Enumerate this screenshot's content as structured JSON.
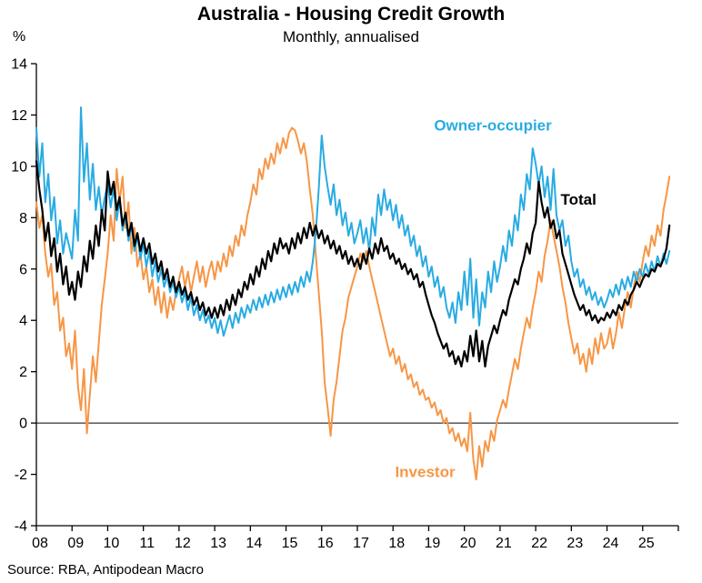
{
  "header": {
    "title": "Australia - Housing Credit Growth",
    "subtitle": "Monthly, annualised",
    "y_axis_unit": "%"
  },
  "footer": {
    "source": "Source: RBA, Antipodean Macro"
  },
  "chart_data": {
    "type": "line",
    "title": "Australia - Housing Credit Growth",
    "subtitle": "Monthly, annualised",
    "ylabel": "%",
    "xlim": [
      2008,
      2026
    ],
    "ylim": [
      -4,
      14
    ],
    "grid": false,
    "zero_line": true,
    "x_start_year": 2008,
    "x_step_months": 1,
    "y_ticks": [
      14,
      12,
      10,
      8,
      6,
      4,
      2,
      0,
      -2,
      -4
    ],
    "x_ticks": [
      {
        "year": 2008,
        "label": "08"
      },
      {
        "year": 2009,
        "label": "09"
      },
      {
        "year": 2010,
        "label": "10"
      },
      {
        "year": 2011,
        "label": "11"
      },
      {
        "year": 2012,
        "label": "12"
      },
      {
        "year": 2013,
        "label": "13"
      },
      {
        "year": 2014,
        "label": "14"
      },
      {
        "year": 2015,
        "label": "15"
      },
      {
        "year": 2016,
        "label": "16"
      },
      {
        "year": 2017,
        "label": "17"
      },
      {
        "year": 2018,
        "label": "18"
      },
      {
        "year": 2019,
        "label": "19"
      },
      {
        "year": 2020,
        "label": "20"
      },
      {
        "year": 2021,
        "label": "21"
      },
      {
        "year": 2022,
        "label": "22"
      },
      {
        "year": 2023,
        "label": "23"
      },
      {
        "year": 2024,
        "label": "24"
      },
      {
        "year": 2025,
        "label": "25"
      }
    ],
    "draw_order": [
      2,
      0,
      1
    ],
    "series": [
      {
        "name": "Owner-occupier",
        "color": "#29ABE2",
        "stroke_width": 2,
        "values": [
          11.5,
          9.6,
          10.9,
          8.6,
          9.7,
          7.9,
          8.8,
          7.0,
          7.9,
          6.6,
          7.4,
          6.9,
          6.4,
          8.3,
          7.1,
          12.3,
          9.4,
          10.9,
          8.7,
          10.1,
          8.3,
          9.2,
          8.1,
          8.8,
          9.3,
          8.4,
          9.2,
          7.9,
          8.7,
          7.5,
          8.1,
          7.1,
          7.7,
          6.7,
          7.3,
          6.4,
          7.0,
          6.1,
          6.7,
          5.7,
          6.3,
          5.5,
          6.0,
          5.3,
          5.7,
          5.1,
          5.5,
          4.9,
          5.3,
          4.7,
          5.1,
          4.4,
          4.9,
          4.2,
          4.6,
          4.0,
          4.4,
          3.9,
          4.2,
          3.7,
          4.1,
          3.5,
          4.0,
          3.4,
          3.8,
          4.2,
          3.7,
          4.3,
          3.9,
          4.5,
          4.1,
          4.6,
          4.3,
          4.8,
          4.4,
          4.9,
          4.5,
          5.0,
          4.6,
          5.1,
          4.7,
          5.2,
          4.8,
          5.3,
          4.9,
          5.4,
          5.0,
          5.5,
          5.1,
          5.7,
          5.3,
          5.9,
          5.5,
          6.3,
          7.4,
          9.1,
          11.2,
          10.0,
          9.2,
          8.5,
          9.3,
          8.1,
          8.7,
          7.7,
          8.2,
          7.3,
          7.8,
          7.0,
          7.4,
          7.9,
          7.0,
          7.6,
          6.7,
          8.0,
          7.3,
          8.9,
          8.1,
          9.1,
          8.3,
          8.7,
          7.9,
          8.5,
          7.6,
          8.1,
          7.3,
          7.7,
          6.9,
          7.3,
          6.5,
          6.9,
          6.1,
          6.5,
          5.7,
          6.1,
          5.3,
          5.7,
          4.9,
          5.3,
          4.5,
          4.1,
          4.7,
          3.9,
          5.1,
          4.4,
          5.9,
          4.6,
          6.4,
          4.1,
          5.6,
          3.8,
          5.1,
          4.5,
          5.9,
          5.1,
          6.3,
          5.5,
          6.1,
          6.9,
          6.3,
          7.5,
          6.9,
          8.1,
          7.5,
          8.9,
          8.3,
          9.7,
          9.1,
          10.7,
          10.1,
          9.3,
          10.0,
          8.8,
          9.6,
          8.3,
          9.9,
          8.1,
          7.5,
          7.9,
          6.9,
          7.3,
          6.3,
          5.7,
          6.0,
          5.3,
          5.6,
          5.0,
          5.3,
          4.8,
          5.1,
          4.6,
          4.9,
          4.5,
          4.8,
          5.2,
          4.9,
          5.4,
          5.0,
          5.6,
          5.2,
          5.7,
          5.3,
          5.9,
          5.5,
          6.0,
          5.7,
          6.2,
          5.8,
          6.3,
          5.9,
          6.5,
          6.1,
          6.6,
          6.2,
          6.7
        ]
      },
      {
        "name": "Total",
        "color": "#000000",
        "stroke_width": 2.2,
        "values": [
          10.2,
          9.1,
          8.3,
          7.1,
          7.8,
          6.5,
          7.2,
          5.9,
          6.6,
          5.4,
          6.1,
          5.0,
          5.5,
          4.8,
          5.9,
          5.3,
          6.5,
          5.9,
          7.1,
          6.4,
          7.7,
          6.9,
          8.3,
          7.5,
          9.8,
          8.9,
          9.4,
          8.3,
          8.8,
          7.7,
          8.2,
          7.3,
          7.8,
          6.9,
          7.4,
          6.7,
          7.2,
          6.6,
          7.0,
          6.2,
          6.6,
          5.9,
          6.3,
          5.6,
          6.0,
          5.3,
          5.7,
          5.1,
          5.5,
          5.0,
          5.3,
          4.8,
          5.1,
          4.6,
          4.9,
          4.4,
          4.7,
          4.2,
          4.5,
          4.1,
          4.5,
          4.1,
          4.6,
          4.2,
          4.8,
          4.4,
          5.0,
          4.6,
          5.2,
          4.9,
          5.5,
          5.2,
          5.8,
          5.4,
          6.1,
          5.7,
          6.4,
          6.0,
          6.7,
          6.3,
          7.0,
          6.6,
          7.2,
          6.8,
          7.0,
          6.6,
          7.2,
          6.8,
          7.4,
          7.0,
          7.6,
          7.2,
          7.8,
          7.3,
          7.7,
          7.2,
          7.5,
          7.0,
          7.3,
          6.8,
          7.1,
          6.6,
          6.9,
          6.4,
          6.7,
          6.2,
          6.5,
          6.1,
          6.4,
          6.0,
          6.6,
          6.2,
          6.8,
          6.4,
          7.0,
          6.6,
          7.2,
          6.7,
          6.9,
          6.4,
          6.6,
          6.2,
          6.4,
          6.0,
          6.2,
          5.8,
          6.0,
          5.6,
          5.8,
          5.3,
          5.5,
          5.0,
          4.6,
          4.2,
          3.9,
          3.5,
          3.2,
          2.9,
          3.1,
          2.6,
          2.8,
          2.3,
          2.6,
          2.2,
          2.8,
          2.4,
          3.4,
          2.6,
          3.6,
          2.4,
          3.2,
          2.2,
          3.0,
          3.4,
          3.8,
          3.5,
          4.0,
          4.4,
          4.2,
          4.8,
          5.2,
          5.6,
          5.4,
          6.0,
          6.4,
          7.0,
          6.6,
          7.4,
          7.8,
          9.4,
          8.6,
          8.0,
          8.4,
          7.6,
          7.9,
          7.2,
          7.5,
          6.6,
          6.2,
          5.8,
          5.4,
          5.0,
          4.7,
          4.4,
          4.6,
          4.2,
          4.4,
          4.0,
          4.2,
          3.9,
          4.1,
          4.0,
          4.3,
          4.1,
          4.4,
          4.2,
          4.6,
          4.4,
          4.8,
          4.6,
          5.0,
          5.2,
          5.5,
          5.3,
          5.6,
          5.8,
          5.7,
          6.0,
          5.9,
          6.2,
          6.1,
          6.4,
          6.8,
          7.7
        ]
      },
      {
        "name": "Investor",
        "color": "#F79646",
        "stroke_width": 2,
        "values": [
          8.6,
          7.6,
          8.1,
          6.6,
          5.7,
          6.2,
          4.6,
          5.1,
          3.6,
          4.1,
          2.6,
          3.1,
          2.1,
          3.6,
          1.4,
          0.5,
          2.1,
          -0.4,
          1.1,
          2.6,
          1.6,
          3.1,
          4.6,
          5.6,
          6.6,
          8.1,
          7.1,
          9.9,
          8.6,
          9.6,
          7.6,
          8.6,
          6.6,
          7.6,
          6.1,
          6.6,
          5.6,
          6.1,
          5.1,
          5.6,
          4.6,
          5.3,
          4.3,
          5.1,
          4.1,
          4.9,
          4.4,
          5.1,
          5.6,
          6.1,
          5.3,
          5.9,
          5.1,
          5.7,
          6.3,
          5.5,
          6.1,
          5.3,
          5.9,
          6.3,
          5.6,
          6.3,
          5.9,
          6.6,
          6.1,
          6.9,
          6.5,
          7.3,
          6.9,
          7.7,
          7.3,
          8.1,
          8.6,
          9.3,
          8.9,
          9.9,
          9.5,
          10.3,
          9.9,
          10.5,
          10.1,
          10.9,
          10.5,
          11.1,
          10.7,
          11.3,
          11.5,
          11.4,
          11.0,
          10.5,
          10.9,
          10.2,
          9.1,
          8.1,
          6.6,
          5.1,
          3.6,
          1.6,
          0.6,
          -0.5,
          0.9,
          1.6,
          2.6,
          3.6,
          4.1,
          4.9,
          5.3,
          5.7,
          6.1,
          6.6,
          6.3,
          6.7,
          6.1,
          5.6,
          5.1,
          4.6,
          4.1,
          3.6,
          3.1,
          2.6,
          2.9,
          2.3,
          2.6,
          2.0,
          2.3,
          1.7,
          1.9,
          1.4,
          1.6,
          1.1,
          1.3,
          0.9,
          1.0,
          0.6,
          0.8,
          0.3,
          0.5,
          0.0,
          0.2,
          -0.4,
          -0.2,
          -0.7,
          -0.4,
          -0.9,
          -0.6,
          -1.1,
          0.4,
          -1.4,
          -2.2,
          -0.9,
          -1.7,
          -0.7,
          -1.1,
          -0.3,
          -0.7,
          0.1,
          0.5,
          0.9,
          0.6,
          1.3,
          1.9,
          2.5,
          2.1,
          2.9,
          3.5,
          4.1,
          3.7,
          4.5,
          5.1,
          5.9,
          5.5,
          6.5,
          7.1,
          7.9,
          7.3,
          6.7,
          6.1,
          5.3,
          4.7,
          3.9,
          3.3,
          2.7,
          3.1,
          2.3,
          2.7,
          2.0,
          2.9,
          2.3,
          3.3,
          2.7,
          3.5,
          2.9,
          3.1,
          3.7,
          2.9,
          3.5,
          4.3,
          3.7,
          4.5,
          5.1,
          4.5,
          5.3,
          5.9,
          5.5,
          6.3,
          6.9,
          6.5,
          7.3,
          6.9,
          7.7,
          7.3,
          8.3,
          8.9,
          9.6
        ]
      }
    ],
    "annotations": [
      {
        "text": "Owner-occupier",
        "color": "#29ABE2",
        "x": 2020.8,
        "y": 11.4
      },
      {
        "text": "Total",
        "color": "#000000",
        "x": 2023.2,
        "y": 8.5
      },
      {
        "text": "Investor",
        "color": "#F79646",
        "x": 2018.9,
        "y": -2.1
      }
    ]
  }
}
